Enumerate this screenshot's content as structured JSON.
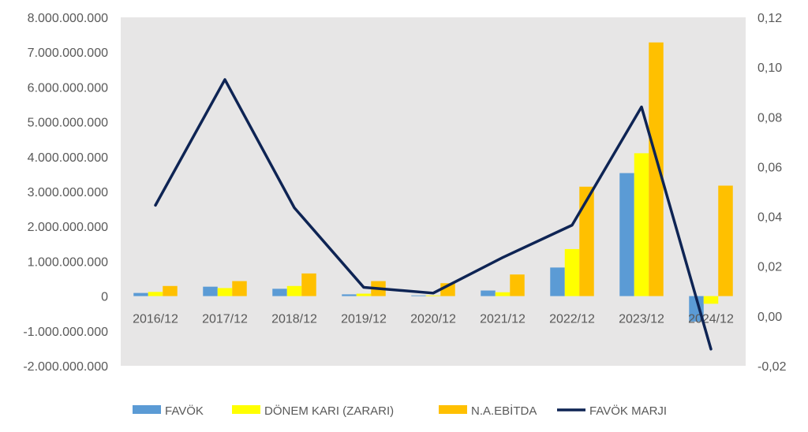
{
  "chart_data": {
    "type": "bar",
    "categories": [
      "2016/12",
      "2017/12",
      "2018/12",
      "2019/12",
      "2020/12",
      "2021/12",
      "2022/12",
      "2023/12",
      "2024/12"
    ],
    "y_ticks": [
      "8.000.000.000",
      "7.000.000.000",
      "6.000.000.000",
      "5.000.000.000",
      "4.000.000.000",
      "3.000.000.000",
      "2.000.000.000",
      "1.000.000.000",
      "0",
      "-1.000.000.000",
      "-2.000.000.000"
    ],
    "y2_ticks": [
      "0,12",
      "0,10",
      "0,08",
      "0,06",
      "0,04",
      "0,02",
      "0,00",
      "-0,02"
    ],
    "ylim": [
      -2000000000,
      8000000000
    ],
    "y2lim": [
      -0.02,
      0.12
    ],
    "grid": false,
    "legend_position": "bottom",
    "series": [
      {
        "name": "FAVÖK",
        "type": "bar",
        "color": "#5B9BD5",
        "values": [
          90000000,
          270000000,
          210000000,
          50000000,
          20000000,
          160000000,
          820000000,
          3530000000,
          -730000000
        ]
      },
      {
        "name": "DÖNEM KARI (ZARARI)",
        "type": "bar",
        "color": "#FFFF00",
        "values": [
          120000000,
          230000000,
          290000000,
          70000000,
          20000000,
          110000000,
          1350000000,
          4100000000,
          -220000000
        ]
      },
      {
        "name": "N.A.EBİTDA",
        "type": "bar",
        "color": "#FFC000",
        "values": [
          290000000,
          430000000,
          650000000,
          430000000,
          370000000,
          620000000,
          3140000000,
          7280000000,
          3170000000
        ]
      },
      {
        "name": "FAVÖK MARJI",
        "type": "line",
        "axis": "secondary",
        "color": "#0E2454",
        "values": [
          0.0445,
          0.095,
          0.0435,
          0.0115,
          0.0092,
          0.0235,
          0.0365,
          0.084,
          -0.0133
        ]
      }
    ]
  }
}
